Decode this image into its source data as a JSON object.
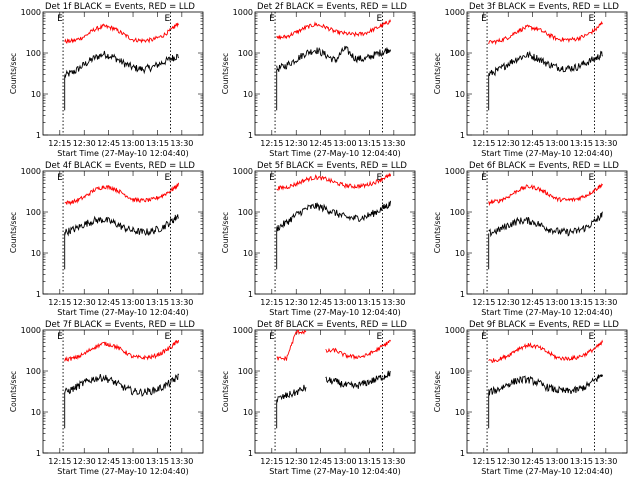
{
  "colors": {
    "events": "#000000",
    "lld": "#ff0000",
    "axes": "#000000",
    "background": "#ffffff"
  },
  "chart_data": [
    {
      "type": "line",
      "title": "Det 1f BLACK = Events, RED = LLD",
      "xlabel": "Start Time (27-May-10 12:04:40)",
      "ylabel": "Counts/sec",
      "yscale": "log",
      "ylim": [
        1,
        1000
      ],
      "xticks": [
        "12:15",
        "12:30",
        "12:45",
        "13:00",
        "13:15",
        "13:30"
      ],
      "yticks": [
        "1",
        "10",
        "100",
        "1000"
      ],
      "markers": [
        {
          "x": "12:17",
          "label": "E"
        },
        {
          "x": "13:23",
          "label": "E"
        }
      ],
      "x": [
        "12:18",
        "12:24",
        "12:30",
        "12:36",
        "12:42",
        "12:48",
        "12:54",
        "13:00",
        "13:06",
        "13:12",
        "13:18",
        "13:24",
        "13:28"
      ],
      "series": [
        {
          "name": "BLACK = Events",
          "values": [
            28,
            35,
            52,
            75,
            95,
            80,
            57,
            44,
            40,
            45,
            58,
            75,
            85
          ]
        },
        {
          "name": "RED = LLD",
          "values": [
            190,
            200,
            250,
            370,
            450,
            400,
            290,
            210,
            200,
            210,
            260,
            380,
            550
          ]
        }
      ]
    },
    {
      "type": "line",
      "title": "Det 2f BLACK = Events, RED = LLD",
      "xlabel": "Start Time (27-May-10 12:04:40)",
      "ylabel": "Counts/sec",
      "yscale": "log",
      "ylim": [
        1,
        1000
      ],
      "xticks": [
        "12:15",
        "12:30",
        "12:45",
        "13:00",
        "13:15",
        "13:30"
      ],
      "yticks": [
        "1",
        "10",
        "100",
        "1000"
      ],
      "markers": [
        {
          "x": "12:17",
          "label": "E"
        },
        {
          "x": "13:23",
          "label": "E"
        }
      ],
      "x": [
        "12:18",
        "12:24",
        "12:30",
        "12:36",
        "12:42",
        "12:48",
        "12:54",
        "13:00",
        "13:06",
        "13:12",
        "13:18",
        "13:24",
        "13:28"
      ],
      "series": [
        {
          "name": "BLACK = Events",
          "values": [
            40,
            50,
            70,
            100,
            120,
            90,
            65,
            130,
            75,
            70,
            90,
            110,
            130
          ]
        },
        {
          "name": "RED = LLD",
          "values": [
            230,
            250,
            320,
            420,
            500,
            430,
            330,
            300,
            280,
            300,
            380,
            500,
            600
          ]
        }
      ]
    },
    {
      "type": "line",
      "title": "Det 3f BLACK = Events, RED = LLD",
      "xlabel": "Start Time (27-May-10 12:04:40)",
      "ylabel": "Counts/sec",
      "yscale": "log",
      "ylim": [
        1,
        1000
      ],
      "xticks": [
        "12:15",
        "12:30",
        "12:45",
        "13:00",
        "13:15",
        "13:30"
      ],
      "yticks": [
        "1",
        "10",
        "100",
        "1000"
      ],
      "markers": [
        {
          "x": "12:17",
          "label": "E"
        },
        {
          "x": "13:23",
          "label": "E"
        }
      ],
      "x": [
        "12:18",
        "12:24",
        "12:30",
        "12:36",
        "12:42",
        "12:48",
        "12:54",
        "13:00",
        "13:06",
        "13:12",
        "13:18",
        "13:24",
        "13:28"
      ],
      "series": [
        {
          "name": "BLACK = Events",
          "values": [
            30,
            38,
            55,
            75,
            90,
            75,
            55,
            45,
            42,
            45,
            58,
            75,
            95
          ]
        },
        {
          "name": "RED = LLD",
          "values": [
            180,
            195,
            240,
            350,
            430,
            390,
            290,
            220,
            210,
            220,
            270,
            380,
            560
          ]
        }
      ]
    },
    {
      "type": "line",
      "title": "Det 4f BLACK = Events, RED = LLD",
      "xlabel": "Start Time (27-May-10 12:04:40)",
      "ylabel": "Counts/sec",
      "yscale": "log",
      "ylim": [
        1,
        1000
      ],
      "xticks": [
        "12:15",
        "12:30",
        "12:45",
        "13:00",
        "13:15",
        "13:30"
      ],
      "yticks": [
        "1",
        "10",
        "100",
        "1000"
      ],
      "markers": [
        {
          "x": "12:17",
          "label": "E"
        },
        {
          "x": "13:23",
          "label": "E"
        }
      ],
      "x": [
        "12:18",
        "12:24",
        "12:30",
        "12:36",
        "12:42",
        "12:48",
        "12:54",
        "13:00",
        "13:06",
        "13:12",
        "13:18",
        "13:24",
        "13:28"
      ],
      "series": [
        {
          "name": "BLACK = Events",
          "values": [
            32,
            38,
            50,
            62,
            65,
            55,
            42,
            35,
            32,
            34,
            42,
            60,
            85
          ]
        },
        {
          "name": "RED = LLD",
          "values": [
            165,
            180,
            230,
            340,
            420,
            380,
            280,
            200,
            190,
            200,
            250,
            350,
            470
          ]
        }
      ]
    },
    {
      "type": "line",
      "title": "Det 5f BLACK = Events, RED = LLD",
      "xlabel": "Start Time (27-May-10 12:04:40)",
      "ylabel": "Counts/sec",
      "yscale": "log",
      "ylim": [
        1,
        1000
      ],
      "xticks": [
        "12:15",
        "12:30",
        "12:45",
        "13:00",
        "13:15",
        "13:30"
      ],
      "yticks": [
        "1",
        "10",
        "100",
        "1000"
      ],
      "markers": [
        {
          "x": "12:17",
          "label": "E"
        },
        {
          "x": "13:23",
          "label": "E"
        }
      ],
      "x": [
        "12:18",
        "12:24",
        "12:30",
        "12:36",
        "12:42",
        "12:48",
        "12:54",
        "13:00",
        "13:06",
        "13:12",
        "13:18",
        "13:24",
        "13:28"
      ],
      "series": [
        {
          "name": "BLACK = Events",
          "values": [
            40,
            55,
            85,
            120,
            140,
            120,
            95,
            75,
            70,
            75,
            95,
            130,
            160
          ]
        },
        {
          "name": "RED = LLD",
          "values": [
            380,
            400,
            480,
            620,
            700,
            640,
            520,
            440,
            420,
            440,
            520,
            680,
            780
          ]
        }
      ]
    },
    {
      "type": "line",
      "title": "Det 6f BLACK = Events, RED = LLD",
      "xlabel": "Start Time (27-May-10 12:04:40)",
      "ylabel": "Counts/sec",
      "yscale": "log",
      "ylim": [
        1,
        1000
      ],
      "xticks": [
        "12:15",
        "12:30",
        "12:45",
        "13:00",
        "13:15",
        "13:30"
      ],
      "yticks": [
        "1",
        "10",
        "100",
        "1000"
      ],
      "markers": [
        {
          "x": "12:17",
          "label": "E"
        },
        {
          "x": "13:23",
          "label": "E"
        }
      ],
      "x": [
        "12:18",
        "12:24",
        "12:30",
        "12:36",
        "12:42",
        "12:48",
        "12:54",
        "13:00",
        "13:06",
        "13:12",
        "13:18",
        "13:24",
        "13:28"
      ],
      "series": [
        {
          "name": "BLACK = Events",
          "values": [
            30,
            36,
            48,
            60,
            62,
            52,
            40,
            34,
            32,
            34,
            42,
            62,
            85
          ]
        },
        {
          "name": "RED = LLD",
          "values": [
            170,
            185,
            235,
            340,
            420,
            380,
            285,
            205,
            195,
            205,
            255,
            360,
            480
          ]
        }
      ]
    },
    {
      "type": "line",
      "title": "Det 7f BLACK = Events, RED = LLD",
      "xlabel": "Start Time (27-May-10 12:04:40)",
      "ylabel": "Counts/sec",
      "yscale": "log",
      "ylim": [
        1,
        1000
      ],
      "xticks": [
        "12:15",
        "12:30",
        "12:45",
        "13:00",
        "13:15",
        "13:30"
      ],
      "yticks": [
        "1",
        "10",
        "100",
        "1000"
      ],
      "markers": [
        {
          "x": "12:17",
          "label": "E"
        },
        {
          "x": "13:23",
          "label": "E"
        }
      ],
      "x": [
        "12:18",
        "12:24",
        "12:30",
        "12:36",
        "12:42",
        "12:48",
        "12:54",
        "13:00",
        "13:06",
        "13:12",
        "13:18",
        "13:24",
        "13:28"
      ],
      "series": [
        {
          "name": "BLACK = Events",
          "values": [
            30,
            38,
            52,
            65,
            70,
            55,
            40,
            32,
            30,
            33,
            40,
            55,
            75
          ]
        },
        {
          "name": "RED = LLD",
          "values": [
            190,
            205,
            260,
            380,
            470,
            420,
            310,
            220,
            210,
            220,
            280,
            400,
            560
          ]
        }
      ]
    },
    {
      "type": "line",
      "title": "Det 8f BLACK = Events, RED = LLD",
      "xlabel": "Start Time (27-May-10 12:04:40)",
      "ylabel": "Counts/sec",
      "yscale": "log",
      "ylim": [
        1,
        1000
      ],
      "xticks": [
        "12:15",
        "12:30",
        "12:45",
        "13:00",
        "13:15",
        "13:30"
      ],
      "yticks": [
        "1",
        "10",
        "100",
        "1000"
      ],
      "markers": [
        {
          "x": "12:17",
          "label": "E"
        },
        {
          "x": "13:23",
          "label": "E"
        }
      ],
      "x": [
        "12:18",
        "12:24",
        "12:30",
        "12:36",
        "12:42",
        "12:48",
        "12:54",
        "13:00",
        "13:06",
        "13:12",
        "13:18",
        "13:24",
        "13:28"
      ],
      "series": [
        {
          "name": "BLACK = Events",
          "values": [
            20,
            25,
            30,
            40,
            null,
            60,
            55,
            45,
            42,
            50,
            60,
            75,
            90
          ]
        },
        {
          "name": "RED = LLD",
          "values": [
            200,
            200,
            900,
            900,
            null,
            300,
            320,
            240,
            220,
            230,
            300,
            420,
            550
          ]
        }
      ]
    },
    {
      "type": "line",
      "title": "Det 9f BLACK = Events, RED = LLD",
      "xlabel": "Start Time (27-May-10 12:04:40)",
      "ylabel": "Counts/sec",
      "yscale": "log",
      "ylim": [
        1,
        1000
      ],
      "xticks": [
        "12:15",
        "12:30",
        "12:45",
        "13:00",
        "13:15",
        "13:30"
      ],
      "yticks": [
        "1",
        "10",
        "100",
        "1000"
      ],
      "markers": [
        {
          "x": "12:17",
          "label": "E"
        },
        {
          "x": "13:23",
          "label": "E"
        }
      ],
      "x": [
        "12:18",
        "12:24",
        "12:30",
        "12:36",
        "12:42",
        "12:48",
        "12:54",
        "13:00",
        "13:06",
        "13:12",
        "13:18",
        "13:24",
        "13:28"
      ],
      "series": [
        {
          "name": "BLACK = Events",
          "values": [
            30,
            36,
            48,
            60,
            62,
            52,
            40,
            34,
            32,
            34,
            42,
            62,
            85
          ]
        },
        {
          "name": "RED = LLD",
          "values": [
            175,
            190,
            240,
            350,
            430,
            390,
            290,
            210,
            200,
            210,
            265,
            370,
            500
          ]
        }
      ]
    }
  ]
}
